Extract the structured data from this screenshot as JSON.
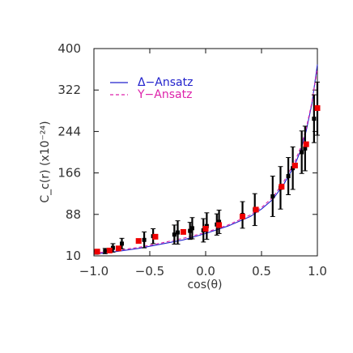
{
  "chart_data": {
    "type": "scatter",
    "xlabel": "cos(θ)",
    "ylabel": "C_c(r)  (x10⁻²⁴)",
    "xlim": [
      -1.0,
      1.0
    ],
    "ylim": [
      10,
      400
    ],
    "xticks": [
      -1.0,
      -0.5,
      0.0,
      0.5,
      1.0
    ],
    "xtick_labels": [
      "−1.0",
      "−0.5",
      "0.0",
      "0.5",
      "1.0"
    ],
    "yticks": [
      10,
      88,
      166,
      244,
      322,
      400
    ],
    "ytick_labels": [
      "10",
      "88",
      "166",
      "244",
      "322",
      "400"
    ],
    "grid": false,
    "legend_position": "top-left",
    "legend": [
      {
        "label": "Δ−Ansatz",
        "color": "#2222cc",
        "style": "solid"
      },
      {
        "label": "Y−Ansatz",
        "color": "#dd22aa",
        "style": "dashed"
      }
    ],
    "series": [
      {
        "name": "Δ−Ansatz",
        "kind": "curve",
        "color": "#2222cc",
        "x": [
          -1.0,
          -0.8,
          -0.6,
          -0.4,
          -0.2,
          0.0,
          0.2,
          0.4,
          0.5,
          0.6,
          0.7,
          0.8,
          0.85,
          0.9,
          0.95,
          1.0
        ],
        "y": [
          13,
          18,
          24,
          32,
          40,
          52,
          66,
          84,
          98,
          116,
          145,
          182,
          208,
          245,
          295,
          370
        ]
      },
      {
        "name": "Y−Ansatz",
        "kind": "curve",
        "color": "#dd22aa",
        "x": [
          -1.0,
          -0.8,
          -0.6,
          -0.4,
          -0.2,
          0.0,
          0.2,
          0.4,
          0.5,
          0.6,
          0.7,
          0.8,
          0.85,
          0.9,
          0.95,
          1.0
        ],
        "y": [
          15,
          20,
          26,
          34,
          43,
          54,
          68,
          87,
          101,
          120,
          150,
          188,
          214,
          250,
          298,
          362
        ]
      },
      {
        "kind": "lattice-points",
        "color": "#000000",
        "x": [
          -0.98,
          -0.9,
          -0.83,
          -0.75,
          -0.55,
          -0.47,
          -0.28,
          -0.25,
          -0.14,
          -0.12,
          -0.02,
          0.01,
          0.1,
          0.12,
          0.33,
          0.44,
          0.6,
          0.67,
          0.74,
          0.78,
          0.86,
          0.89,
          0.97,
          1.0
        ],
        "y": [
          17,
          19,
          25,
          33,
          40,
          47,
          50,
          54,
          57,
          62,
          58,
          66,
          69,
          74,
          87,
          97,
          122,
          138,
          160,
          175,
          205,
          212,
          268,
          287
        ],
        "err": [
          4,
          5,
          8,
          10,
          15,
          14,
          18,
          22,
          16,
          20,
          22,
          25,
          20,
          22,
          25,
          30,
          38,
          40,
          35,
          40,
          40,
          42,
          45,
          50
        ]
      },
      {
        "kind": "averages",
        "color": "#ee0000",
        "x": [
          -0.97,
          -0.86,
          -0.78,
          -0.6,
          -0.45,
          -0.2,
          0.0,
          0.12,
          0.33,
          0.45,
          0.68,
          0.8,
          0.9,
          1.0
        ],
        "y": [
          18,
          20,
          24,
          38,
          46,
          55,
          61,
          68,
          84,
          97,
          140,
          180,
          220,
          288
        ]
      }
    ]
  }
}
